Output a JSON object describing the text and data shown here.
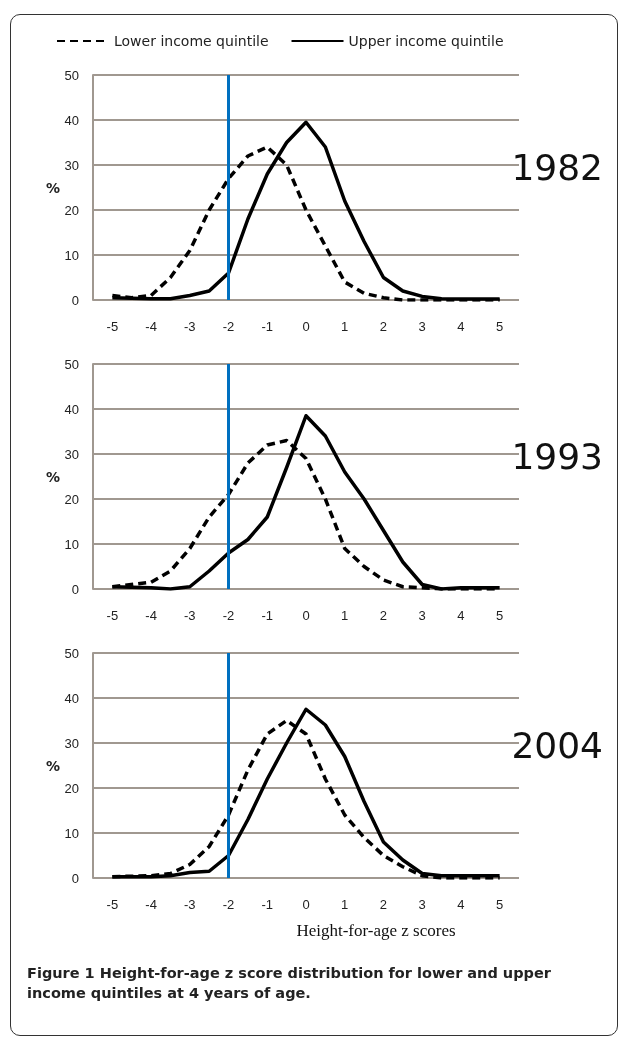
{
  "chart_data": [
    {
      "type": "line",
      "ylabel": "%",
      "annotations": [
        "1982"
      ],
      "legend": "top",
      "grid": "y",
      "marker": "none",
      "xlim": [
        -5.5,
        5.5
      ],
      "xticks": [
        -5,
        -4,
        -3,
        -2,
        -1,
        0,
        1,
        2,
        3,
        4,
        5
      ],
      "ylim": [
        0,
        50
      ],
      "yticks": [
        0,
        10,
        20,
        30,
        40,
        50
      ],
      "ref_lines": [
        {
          "axis": "x",
          "value": -2,
          "label": null,
          "color": "#0070c0",
          "line_style": "solid"
        }
      ],
      "series": [
        {
          "name": "Lower income quintile",
          "color": "#000000",
          "line_style": "dashed",
          "x": [
            -5,
            -4.5,
            -4,
            -3.5,
            -3,
            -2.5,
            -2,
            -1.5,
            -1,
            -0.5,
            0,
            0.5,
            1,
            1.5,
            2,
            2.5,
            3,
            4,
            5
          ],
          "values": [
            1,
            0.5,
            1,
            5,
            11,
            20,
            27,
            32,
            34,
            30,
            20,
            12,
            4,
            1.5,
            0.5,
            0,
            0,
            0,
            0
          ]
        },
        {
          "name": "Upper income quintile",
          "color": "#000000",
          "line_style": "solid",
          "x": [
            -5,
            -4,
            -3.5,
            -3,
            -2.5,
            -2,
            -1.5,
            -1,
            -0.5,
            0,
            0.5,
            1,
            1.5,
            2,
            2.5,
            3,
            3.5,
            4,
            5
          ],
          "values": [
            0.5,
            0.3,
            0.3,
            1,
            2,
            6,
            18,
            28,
            35,
            39.5,
            34,
            22,
            13,
            5,
            2,
            0.8,
            0.3,
            0.2,
            0.2
          ]
        }
      ]
    },
    {
      "type": "line",
      "ylabel": "%",
      "annotations": [
        "1993"
      ],
      "grid": "y",
      "marker": "none",
      "xlim": [
        -5.5,
        5.5
      ],
      "xticks": [
        -5,
        -4,
        -3,
        -2,
        -1,
        0,
        1,
        2,
        3,
        4,
        5
      ],
      "ylim": [
        0,
        50
      ],
      "yticks": [
        0,
        10,
        20,
        30,
        40,
        50
      ],
      "ref_lines": [
        {
          "axis": "x",
          "value": -2,
          "label": null,
          "color": "#0070c0",
          "line_style": "solid"
        }
      ],
      "series": [
        {
          "color": "#000000",
          "line_style": "dashed",
          "x": [
            -5,
            -4,
            -3.5,
            -3,
            -2.5,
            -2,
            -1.5,
            -1,
            -0.5,
            0,
            0.5,
            1,
            1.5,
            2,
            2.5,
            3,
            3.5,
            4,
            5
          ],
          "values": [
            0.5,
            1.5,
            4,
            9,
            16,
            21,
            28,
            32,
            33,
            29,
            20,
            9,
            5,
            2,
            0.5,
            0.3,
            0,
            0,
            0
          ]
        },
        {
          "color": "#000000",
          "line_style": "solid",
          "x": [
            -5,
            -4,
            -3.5,
            -3,
            -2.5,
            -2,
            -1.5,
            -1,
            -0.5,
            0,
            0.5,
            1,
            1.5,
            2,
            2.5,
            3,
            3.5,
            4,
            5
          ],
          "values": [
            0.5,
            0.3,
            0,
            0.5,
            4,
            8,
            11,
            16,
            27,
            38.5,
            34,
            26,
            20,
            13,
            6,
            1,
            0,
            0.3,
            0.3
          ]
        }
      ]
    },
    {
      "type": "line",
      "ylabel": "%",
      "xlabel": "Height-for-age z scores",
      "annotations": [
        "2004",
        "Figure 1 Height-for-age z score distribution for lower and upper income quintiles at 4 years of age."
      ],
      "grid": "y",
      "marker": "none",
      "xlim": [
        -5.5,
        5.5
      ],
      "xticks": [
        -5,
        -4,
        -3,
        -2,
        -1,
        0,
        1,
        2,
        3,
        4,
        5
      ],
      "ylim": [
        0,
        50
      ],
      "yticks": [
        0,
        10,
        20,
        30,
        40,
        50
      ],
      "ref_lines": [
        {
          "axis": "x",
          "value": -2,
          "label": null,
          "color": "#0070c0",
          "line_style": "solid"
        }
      ],
      "series": [
        {
          "color": "#000000",
          "line_style": "dashed",
          "x": [
            -5,
            -4,
            -3.5,
            -3,
            -2.5,
            -2,
            -1.5,
            -1,
            -0.5,
            0,
            0.5,
            1,
            1.5,
            2,
            2.5,
            3,
            3.5,
            5
          ],
          "values": [
            0.3,
            0.5,
            1,
            3,
            7,
            14,
            24,
            32,
            35,
            32,
            22,
            14,
            9,
            5,
            2.5,
            0.5,
            0,
            0
          ]
        },
        {
          "color": "#000000",
          "line_style": "solid",
          "x": [
            -5,
            -4,
            -3.5,
            -3,
            -2.5,
            -2,
            -1.5,
            -1,
            -0.5,
            0,
            0.5,
            1,
            1.5,
            2,
            2.5,
            3,
            3.5,
            4,
            5
          ],
          "values": [
            0.3,
            0.3,
            0.5,
            1.2,
            1.5,
            5,
            13,
            22,
            30,
            37.5,
            34,
            27,
            17,
            8,
            4,
            1,
            0.5,
            0.5,
            0.5
          ]
        }
      ]
    }
  ]
}
